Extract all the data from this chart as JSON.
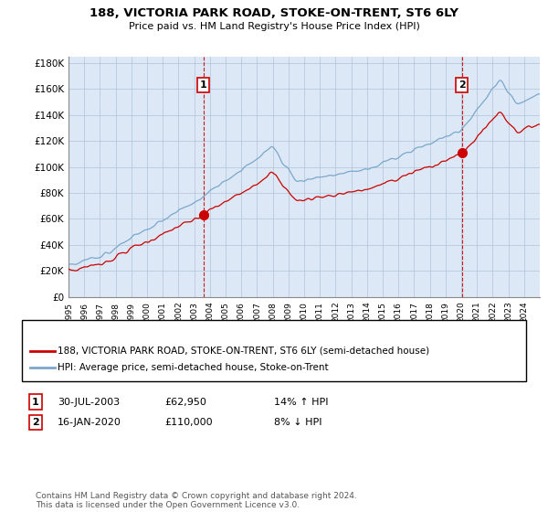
{
  "title": "188, VICTORIA PARK ROAD, STOKE-ON-TRENT, ST6 6LY",
  "subtitle": "Price paid vs. HM Land Registry's House Price Index (HPI)",
  "ylabel_ticks": [
    "£0",
    "£20K",
    "£40K",
    "£60K",
    "£80K",
    "£100K",
    "£120K",
    "£140K",
    "£160K",
    "£180K"
  ],
  "ytick_values": [
    0,
    20000,
    40000,
    60000,
    80000,
    100000,
    120000,
    140000,
    160000,
    180000
  ],
  "ylim": [
    0,
    185000
  ],
  "xlim_start": 1995,
  "xlim_end": 2025,
  "legend_line1": "188, VICTORIA PARK ROAD, STOKE-ON-TRENT, ST6 6LY (semi-detached house)",
  "legend_line2": "HPI: Average price, semi-detached house, Stoke-on-Trent",
  "annotation1_num": "1",
  "annotation1_date": "30-JUL-2003",
  "annotation1_price": "£62,950",
  "annotation1_hpi": "14% ↑ HPI",
  "annotation2_num": "2",
  "annotation2_date": "16-JAN-2020",
  "annotation2_price": "£110,000",
  "annotation2_hpi": "8% ↓ HPI",
  "footer": "Contains HM Land Registry data © Crown copyright and database right 2024.\nThis data is licensed under the Open Government Licence v3.0.",
  "line_color_red": "#cc0000",
  "line_color_blue": "#7ba7cc",
  "vline_color": "#cc0000",
  "marker1_x_year": 2003.58,
  "marker1_y": 62950,
  "marker2_x_year": 2020.04,
  "marker2_y": 110000,
  "sale_dates": [
    2003.58,
    2020.04
  ],
  "plot_bg_color": "#dce8f5",
  "background_color": "#ffffff",
  "grid_color": "#b0c4d8"
}
